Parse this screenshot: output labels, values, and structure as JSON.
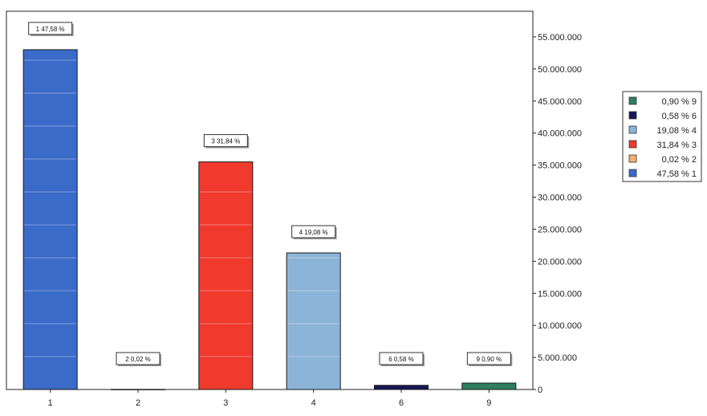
{
  "chart_data": {
    "type": "bar",
    "title": "",
    "xlabel": "",
    "ylabel": "",
    "categories": [
      "1",
      "2",
      "3",
      "4",
      "6",
      "9"
    ],
    "values": [
      53000000,
      20000,
      35500000,
      21300000,
      650000,
      1000000
    ],
    "data_labels": [
      "1 47,58 %",
      "2 0,02 %",
      "3 31,84 %",
      "4 19,08 %",
      "6 0,58 %",
      "9 0,90 %"
    ],
    "colors": [
      "#3a6bc8",
      "#f2b070",
      "#f03a2e",
      "#8cb4d8",
      "#15155a",
      "#2e7e62"
    ],
    "ylim": [
      0,
      59000000
    ],
    "yticks": [
      0,
      5000000,
      10000000,
      15000000,
      20000000,
      25000000,
      30000000,
      35000000,
      40000000,
      45000000,
      50000000,
      55000000
    ],
    "ytick_labels": [
      "0",
      "5.000.000",
      "10.000.000",
      "15.000.000",
      "20.000.000",
      "25.000.000",
      "30.000.000",
      "35.000.000",
      "40.000.000",
      "45.000.000",
      "50.000.000",
      "55.000.000"
    ],
    "y_axis_position": "right",
    "legend": {
      "placement": "right",
      "entries": [
        {
          "label": "0,90 % 9",
          "color": "#2e7e62"
        },
        {
          "label": "0,58 % 6",
          "color": "#15155a"
        },
        {
          "label": "19,08 % 4",
          "color": "#8cb4d8"
        },
        {
          "label": "31,84 % 3",
          "color": "#f03a2e"
        },
        {
          "label": "0,02 % 2",
          "color": "#f2b070"
        },
        {
          "label": "47,58 % 1",
          "color": "#3a6bc8"
        }
      ]
    }
  }
}
